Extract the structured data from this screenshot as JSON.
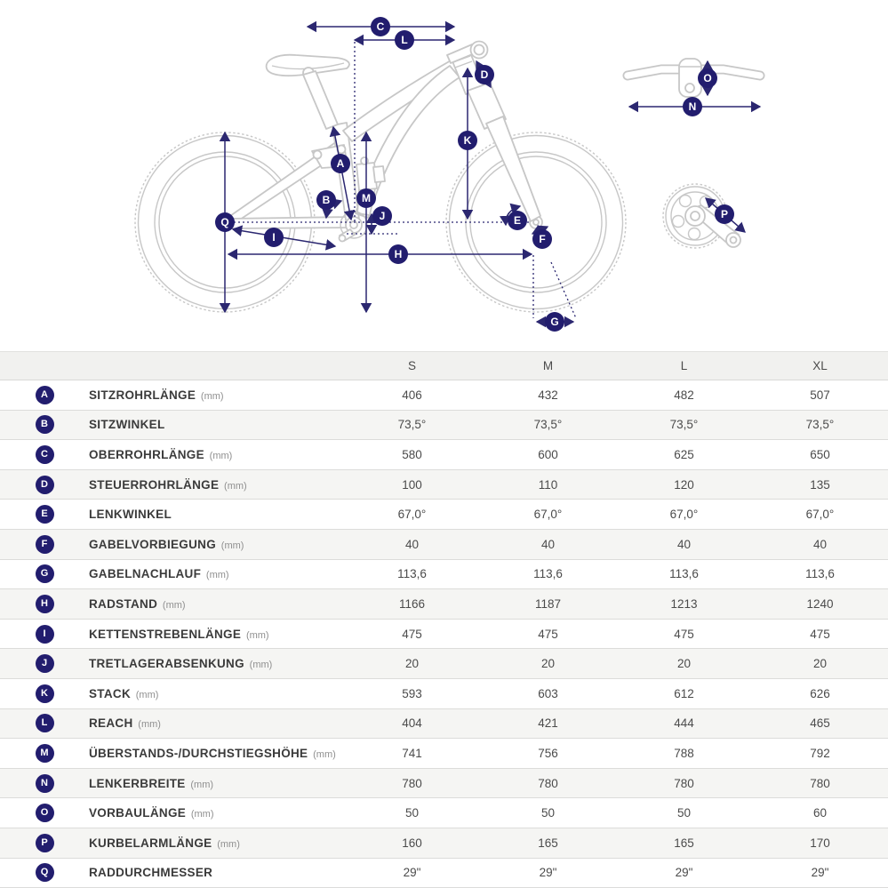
{
  "colors": {
    "accent": "#221d6e",
    "arrow": "#2b2770",
    "bike_outline": "#c7c7c7",
    "row_alt_background": "#f5f5f3",
    "header_background": "#f1f1ef"
  },
  "diagram": {
    "description": "bike-geometry-diagram",
    "views": [
      "bike-side-view",
      "handlebar-top-view",
      "crankset-view"
    ]
  },
  "table": {
    "size_headers": [
      "S",
      "M",
      "L",
      "XL"
    ],
    "rows": [
      {
        "letter": "A",
        "label": "SITZROHRLÄNGE",
        "unit": "(mm)",
        "values": [
          "406",
          "432",
          "482",
          "507"
        ]
      },
      {
        "letter": "B",
        "label": "SITZWINKEL",
        "unit": "",
        "values": [
          "73,5°",
          "73,5°",
          "73,5°",
          "73,5°"
        ]
      },
      {
        "letter": "C",
        "label": "OBERROHRLÄNGE",
        "unit": "(mm)",
        "values": [
          "580",
          "600",
          "625",
          "650"
        ]
      },
      {
        "letter": "D",
        "label": "STEUERROHRLÄNGE",
        "unit": "(mm)",
        "values": [
          "100",
          "110",
          "120",
          "135"
        ]
      },
      {
        "letter": "E",
        "label": "LENKWINKEL",
        "unit": "",
        "values": [
          "67,0°",
          "67,0°",
          "67,0°",
          "67,0°"
        ]
      },
      {
        "letter": "F",
        "label": "GABELVORBIEGUNG",
        "unit": "(mm)",
        "values": [
          "40",
          "40",
          "40",
          "40"
        ]
      },
      {
        "letter": "G",
        "label": "GABELNACHLAUF",
        "unit": "(mm)",
        "values": [
          "113,6",
          "113,6",
          "113,6",
          "113,6"
        ]
      },
      {
        "letter": "H",
        "label": "RADSTAND",
        "unit": "(mm)",
        "values": [
          "1166",
          "1187",
          "1213",
          "1240"
        ]
      },
      {
        "letter": "I",
        "label": "KETTENSTREBENLÄNGE",
        "unit": "(mm)",
        "values": [
          "475",
          "475",
          "475",
          "475"
        ]
      },
      {
        "letter": "J",
        "label": "TRETLAGERABSENKUNG",
        "unit": "(mm)",
        "values": [
          "20",
          "20",
          "20",
          "20"
        ]
      },
      {
        "letter": "K",
        "label": "STACK",
        "unit": "(mm)",
        "values": [
          "593",
          "603",
          "612",
          "626"
        ]
      },
      {
        "letter": "L",
        "label": "REACH",
        "unit": "(mm)",
        "values": [
          "404",
          "421",
          "444",
          "465"
        ]
      },
      {
        "letter": "M",
        "label": "ÜBERSTANDS-/DURCHSTIEGSHÖHE",
        "unit": "(mm)",
        "values": [
          "741",
          "756",
          "788",
          "792"
        ]
      },
      {
        "letter": "N",
        "label": "LENKERBREITE",
        "unit": "(mm)",
        "values": [
          "780",
          "780",
          "780",
          "780"
        ]
      },
      {
        "letter": "O",
        "label": "VORBAULÄNGE",
        "unit": "(mm)",
        "values": [
          "50",
          "50",
          "50",
          "60"
        ]
      },
      {
        "letter": "P",
        "label": "KURBELARMLÄNGE",
        "unit": "(mm)",
        "values": [
          "160",
          "165",
          "165",
          "170"
        ]
      },
      {
        "letter": "Q",
        "label": "RADDURCHMESSER",
        "unit": "",
        "values": [
          "29\"",
          "29\"",
          "29\"",
          "29\""
        ]
      }
    ]
  }
}
